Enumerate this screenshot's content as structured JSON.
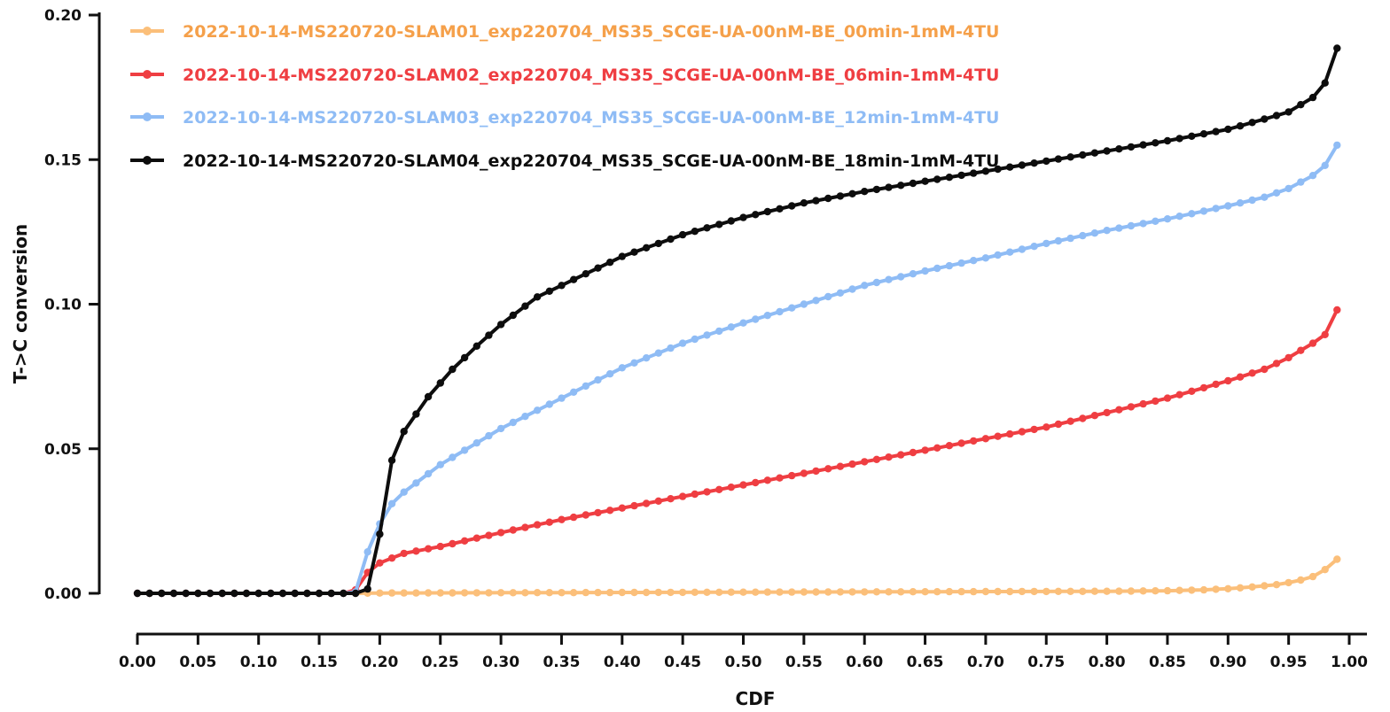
{
  "chart_data": {
    "type": "line",
    "xlabel": "CDF",
    "ylabel": "T->C conversion",
    "xlim": [
      0.0,
      1.0
    ],
    "ylim": [
      0.0,
      0.2
    ],
    "x_ticks": [
      "0.00",
      "0.05",
      "0.10",
      "0.15",
      "0.20",
      "0.25",
      "0.30",
      "0.35",
      "0.40",
      "0.45",
      "0.50",
      "0.55",
      "0.60",
      "0.65",
      "0.70",
      "0.75",
      "0.80",
      "0.85",
      "0.90",
      "0.95",
      "1.00"
    ],
    "y_ticks": [
      "0.00",
      "0.05",
      "0.10",
      "0.15",
      "0.20"
    ],
    "grid": false,
    "legend_position": "top-left",
    "series": [
      {
        "name": "2022-10-14-MS220720-SLAM01_exp220704_MS35_SCGE-UA-00nM-BE_00min-1mM-4TU",
        "color": "#fbbf7a",
        "text_color": "#f5a04a",
        "points": [
          [
            0.0,
            0.0
          ],
          [
            0.1,
            0.0
          ],
          [
            0.18,
            0.0
          ],
          [
            0.2,
            0.0001
          ],
          [
            0.3,
            0.0002
          ],
          [
            0.4,
            0.0003
          ],
          [
            0.5,
            0.0004
          ],
          [
            0.6,
            0.0005
          ],
          [
            0.7,
            0.0006
          ],
          [
            0.8,
            0.0007
          ],
          [
            0.85,
            0.0009
          ],
          [
            0.88,
            0.0012
          ],
          [
            0.9,
            0.0016
          ],
          [
            0.92,
            0.0022
          ],
          [
            0.94,
            0.003
          ],
          [
            0.95,
            0.0037
          ],
          [
            0.96,
            0.0046
          ],
          [
            0.97,
            0.0058
          ],
          [
            0.98,
            0.0082
          ],
          [
            0.99,
            0.0118
          ]
        ]
      },
      {
        "name": "2022-10-14-MS220720-SLAM02_exp220704_MS35_SCGE-UA-00nM-BE_06min-1mM-4TU",
        "color": "#ef3e42",
        "text_color": "#ef3e42",
        "points": [
          [
            0.0,
            0.0
          ],
          [
            0.1,
            0.0
          ],
          [
            0.17,
            0.0
          ],
          [
            0.18,
            0.0012
          ],
          [
            0.185,
            0.005
          ],
          [
            0.19,
            0.0072
          ],
          [
            0.2,
            0.0105
          ],
          [
            0.21,
            0.0122
          ],
          [
            0.22,
            0.0138
          ],
          [
            0.25,
            0.0162
          ],
          [
            0.3,
            0.021
          ],
          [
            0.35,
            0.0255
          ],
          [
            0.4,
            0.0295
          ],
          [
            0.45,
            0.0335
          ],
          [
            0.5,
            0.0375
          ],
          [
            0.55,
            0.0415
          ],
          [
            0.6,
            0.0455
          ],
          [
            0.65,
            0.0495
          ],
          [
            0.7,
            0.0535
          ],
          [
            0.75,
            0.0575
          ],
          [
            0.8,
            0.0625
          ],
          [
            0.85,
            0.0675
          ],
          [
            0.9,
            0.0735
          ],
          [
            0.93,
            0.0775
          ],
          [
            0.95,
            0.0815
          ],
          [
            0.97,
            0.0865
          ],
          [
            0.98,
            0.0895
          ],
          [
            0.99,
            0.098
          ]
        ]
      },
      {
        "name": "2022-10-14-MS220720-SLAM03_exp220704_MS35_SCGE-UA-00nM-BE_12min-1mM-4TU",
        "color": "#8fbcf5",
        "text_color": "#8fbcf5",
        "points": [
          [
            0.0,
            0.0
          ],
          [
            0.1,
            0.0
          ],
          [
            0.17,
            0.0
          ],
          [
            0.18,
            0.0005
          ],
          [
            0.185,
            0.0095
          ],
          [
            0.2,
            0.024
          ],
          [
            0.21,
            0.031
          ],
          [
            0.22,
            0.035
          ],
          [
            0.25,
            0.0445
          ],
          [
            0.3,
            0.057
          ],
          [
            0.35,
            0.0675
          ],
          [
            0.4,
            0.078
          ],
          [
            0.45,
            0.0865
          ],
          [
            0.5,
            0.0935
          ],
          [
            0.55,
            0.1
          ],
          [
            0.6,
            0.1065
          ],
          [
            0.65,
            0.1115
          ],
          [
            0.7,
            0.116
          ],
          [
            0.75,
            0.121
          ],
          [
            0.8,
            0.1255
          ],
          [
            0.85,
            0.1295
          ],
          [
            0.9,
            0.134
          ],
          [
            0.93,
            0.137
          ],
          [
            0.95,
            0.14
          ],
          [
            0.97,
            0.1445
          ],
          [
            0.98,
            0.148
          ],
          [
            0.99,
            0.155
          ]
        ]
      },
      {
        "name": "2022-10-14-MS220720-SLAM04_exp220704_MS35_SCGE-UA-00nM-BE_18min-1mM-4TU",
        "color": "#0d0d0d",
        "text_color": "#0d0d0d",
        "points": [
          [
            0.0,
            0.0
          ],
          [
            0.1,
            0.0
          ],
          [
            0.185,
            0.0
          ],
          [
            0.19,
            0.0015
          ],
          [
            0.2,
            0.0205
          ],
          [
            0.21,
            0.046
          ],
          [
            0.22,
            0.056
          ],
          [
            0.24,
            0.068
          ],
          [
            0.26,
            0.0775
          ],
          [
            0.28,
            0.0855
          ],
          [
            0.3,
            0.093
          ],
          [
            0.33,
            0.1025
          ],
          [
            0.35,
            0.1065
          ],
          [
            0.4,
            0.1165
          ],
          [
            0.45,
            0.124
          ],
          [
            0.5,
            0.13
          ],
          [
            0.55,
            0.135
          ],
          [
            0.6,
            0.139
          ],
          [
            0.65,
            0.1425
          ],
          [
            0.7,
            0.146
          ],
          [
            0.75,
            0.1495
          ],
          [
            0.8,
            0.153
          ],
          [
            0.85,
            0.1565
          ],
          [
            0.9,
            0.1605
          ],
          [
            0.93,
            0.164
          ],
          [
            0.95,
            0.1665
          ],
          [
            0.97,
            0.1715
          ],
          [
            0.98,
            0.1765
          ],
          [
            0.99,
            0.1885
          ]
        ]
      }
    ]
  }
}
